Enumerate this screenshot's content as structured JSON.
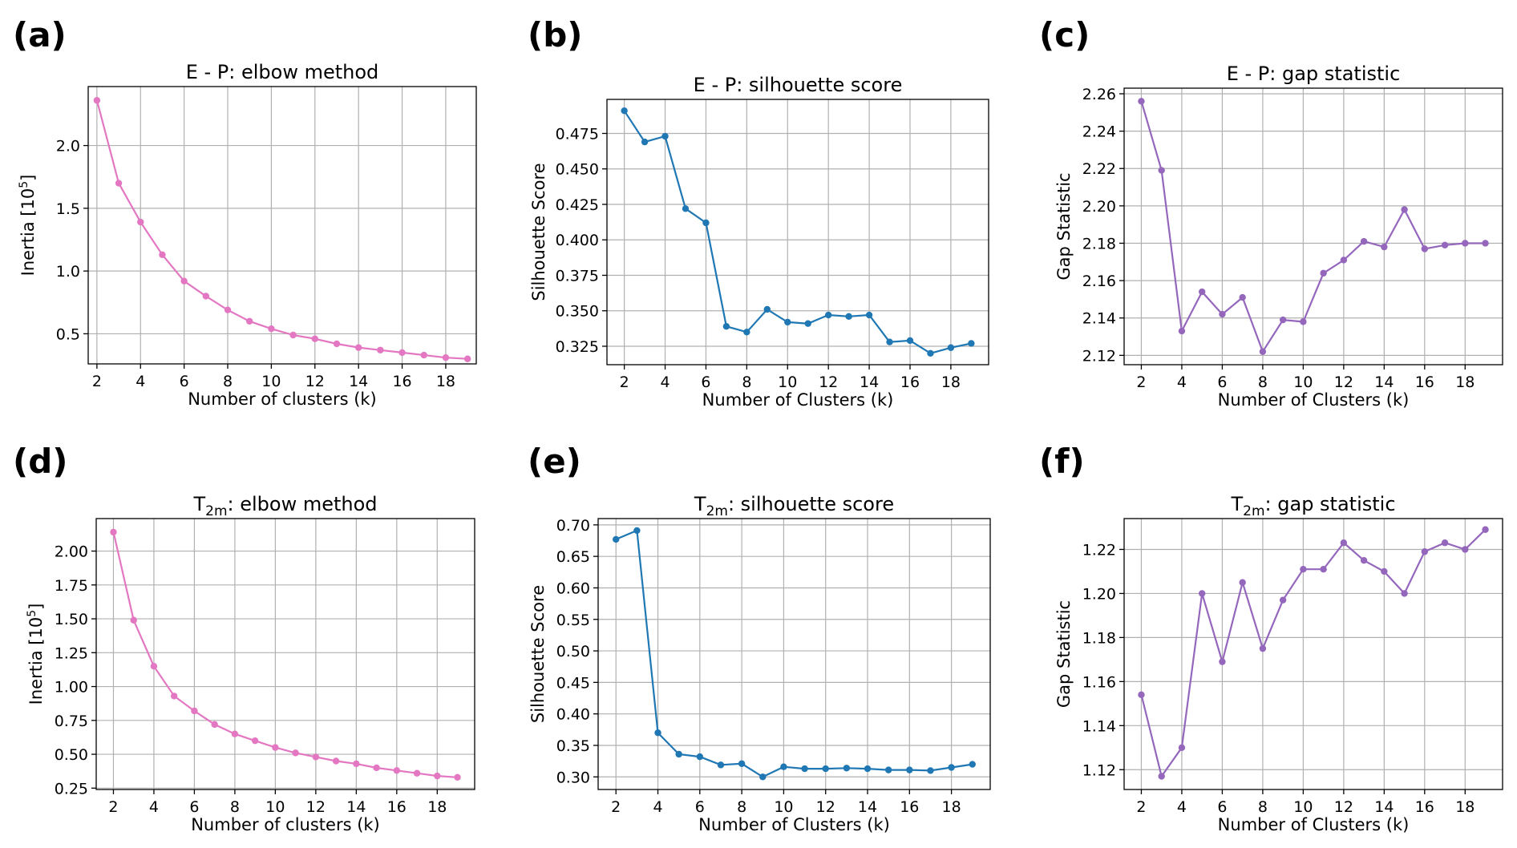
{
  "chart_data": [
    {
      "panel": "(a)",
      "type": "line",
      "title": "E - P: elbow method",
      "title_sub": "",
      "title_tail": "",
      "xlabel": "Number of clusters (k)",
      "ylabel": "Inertia [10",
      "ylabel_sup": "5",
      "ylabel_tail": "]",
      "color": "#e377c2",
      "xlim": [
        1.6,
        19.4
      ],
      "ylim": [
        0.26,
        2.47
      ],
      "xticks": [
        2,
        4,
        6,
        8,
        10,
        12,
        14,
        16,
        18
      ],
      "yticks": [
        0.5,
        1.0,
        1.5,
        2.0
      ],
      "ytick_labels": [
        "0.5",
        "1.0",
        "1.5",
        "2.0"
      ],
      "grid": true,
      "x": [
        2,
        3,
        4,
        5,
        6,
        7,
        8,
        9,
        10,
        11,
        12,
        13,
        14,
        15,
        16,
        17,
        18,
        19
      ],
      "values": [
        2.36,
        1.7,
        1.39,
        1.13,
        0.92,
        0.8,
        0.69,
        0.6,
        0.54,
        0.49,
        0.46,
        0.42,
        0.39,
        0.37,
        0.35,
        0.33,
        0.31,
        0.3
      ]
    },
    {
      "panel": "(b)",
      "type": "line",
      "title": "E - P: silhouette score",
      "title_sub": "",
      "title_tail": "",
      "xlabel": "Number of Clusters (k)",
      "ylabel": "Silhouette Score",
      "ylabel_sup": "",
      "ylabel_tail": "",
      "color": "#1f77b4",
      "xlim": [
        1.15,
        19.85
      ],
      "ylim": [
        0.312,
        0.499
      ],
      "xticks": [
        2,
        4,
        6,
        8,
        10,
        12,
        14,
        16,
        18
      ],
      "yticks": [
        0.325,
        0.35,
        0.375,
        0.4,
        0.425,
        0.45,
        0.475
      ],
      "ytick_labels": [
        "0.325",
        "0.350",
        "0.375",
        "0.400",
        "0.425",
        "0.450",
        "0.475"
      ],
      "grid": true,
      "x": [
        2,
        3,
        4,
        5,
        6,
        7,
        8,
        9,
        10,
        11,
        12,
        13,
        14,
        15,
        16,
        17,
        18,
        19
      ],
      "values": [
        0.491,
        0.469,
        0.473,
        0.422,
        0.412,
        0.339,
        0.335,
        0.351,
        0.342,
        0.341,
        0.347,
        0.346,
        0.347,
        0.328,
        0.329,
        0.32,
        0.324,
        0.327
      ]
    },
    {
      "panel": "(c)",
      "type": "line",
      "title": "E - P: gap statistic",
      "title_sub": "",
      "title_tail": "",
      "xlabel": "Number of Clusters (k)",
      "ylabel": "Gap Statistic",
      "ylabel_sup": "",
      "ylabel_tail": "",
      "color": "#9467bd",
      "xlim": [
        1.15,
        19.85
      ],
      "ylim": [
        2.115,
        2.263
      ],
      "xticks": [
        2,
        4,
        6,
        8,
        10,
        12,
        14,
        16,
        18
      ],
      "yticks": [
        2.12,
        2.14,
        2.16,
        2.18,
        2.2,
        2.22,
        2.24,
        2.26
      ],
      "ytick_labels": [
        "2.12",
        "2.14",
        "2.16",
        "2.18",
        "2.20",
        "2.22",
        "2.24",
        "2.26"
      ],
      "grid": true,
      "x": [
        2,
        3,
        4,
        5,
        6,
        7,
        8,
        9,
        10,
        11,
        12,
        13,
        14,
        15,
        16,
        17,
        18,
        19
      ],
      "values": [
        2.256,
        2.219,
        2.133,
        2.154,
        2.142,
        2.151,
        2.122,
        2.139,
        2.138,
        2.164,
        2.171,
        2.181,
        2.178,
        2.198,
        2.177,
        2.179,
        2.18,
        2.18
      ]
    },
    {
      "panel": "(d)",
      "type": "line",
      "title": "T",
      "title_sub": "2m",
      "title_tail": ": elbow method",
      "xlabel": "Number of clusters (k)",
      "ylabel": "Inertia [10",
      "ylabel_sup": "5",
      "ylabel_tail": "]",
      "color": "#e377c2",
      "xlim": [
        1.15,
        19.85
      ],
      "ylim": [
        0.24,
        2.24
      ],
      "xticks": [
        2,
        4,
        6,
        8,
        10,
        12,
        14,
        16,
        18
      ],
      "yticks": [
        0.25,
        0.5,
        0.75,
        1.0,
        1.25,
        1.5,
        1.75,
        2.0
      ],
      "ytick_labels": [
        "0.25",
        "0.50",
        "0.75",
        "1.00",
        "1.25",
        "1.50",
        "1.75",
        "2.00"
      ],
      "grid": true,
      "x": [
        2,
        3,
        4,
        5,
        6,
        7,
        8,
        9,
        10,
        11,
        12,
        13,
        14,
        15,
        16,
        17,
        18,
        19
      ],
      "values": [
        2.14,
        1.49,
        1.15,
        0.93,
        0.82,
        0.72,
        0.65,
        0.6,
        0.55,
        0.51,
        0.48,
        0.45,
        0.43,
        0.4,
        0.38,
        0.36,
        0.34,
        0.33
      ]
    },
    {
      "panel": "(e)",
      "type": "line",
      "title": "T",
      "title_sub": "2m",
      "title_tail": ": silhouette score",
      "xlabel": "Number of Clusters (k)",
      "ylabel": "Silhouette Score",
      "ylabel_sup": "",
      "ylabel_tail": "",
      "color": "#1f77b4",
      "xlim": [
        1.15,
        19.85
      ],
      "ylim": [
        0.28,
        0.71
      ],
      "xticks": [
        2,
        4,
        6,
        8,
        10,
        12,
        14,
        16,
        18
      ],
      "yticks": [
        0.3,
        0.35,
        0.4,
        0.45,
        0.5,
        0.55,
        0.6,
        0.65,
        0.7
      ],
      "ytick_labels": [
        "0.30",
        "0.35",
        "0.40",
        "0.45",
        "0.50",
        "0.55",
        "0.60",
        "0.65",
        "0.70"
      ],
      "grid": true,
      "x": [
        2,
        3,
        4,
        5,
        6,
        7,
        8,
        9,
        10,
        11,
        12,
        13,
        14,
        15,
        16,
        17,
        18,
        19
      ],
      "values": [
        0.677,
        0.691,
        0.37,
        0.336,
        0.332,
        0.319,
        0.321,
        0.3,
        0.316,
        0.313,
        0.313,
        0.314,
        0.313,
        0.311,
        0.311,
        0.31,
        0.315,
        0.32
      ]
    },
    {
      "panel": "(f)",
      "type": "line",
      "title": "T",
      "title_sub": "2m",
      "title_tail": ": gap statistic",
      "xlabel": "Number of Clusters (k)",
      "ylabel": "Gap Statistic",
      "ylabel_sup": "",
      "ylabel_tail": "",
      "color": "#9467bd",
      "xlim": [
        1.15,
        19.85
      ],
      "ylim": [
        1.111,
        1.234
      ],
      "xticks": [
        2,
        4,
        6,
        8,
        10,
        12,
        14,
        16,
        18
      ],
      "yticks": [
        1.12,
        1.14,
        1.16,
        1.18,
        1.2,
        1.22
      ],
      "ytick_labels": [
        "1.12",
        "1.14",
        "1.16",
        "1.18",
        "1.20",
        "1.22"
      ],
      "grid": true,
      "x": [
        2,
        3,
        4,
        5,
        6,
        7,
        8,
        9,
        10,
        11,
        12,
        13,
        14,
        15,
        16,
        17,
        18,
        19
      ],
      "values": [
        1.154,
        1.117,
        1.13,
        1.2,
        1.169,
        1.205,
        1.175,
        1.197,
        1.211,
        1.211,
        1.223,
        1.215,
        1.21,
        1.2,
        1.219,
        1.223,
        1.22,
        1.229
      ]
    }
  ]
}
